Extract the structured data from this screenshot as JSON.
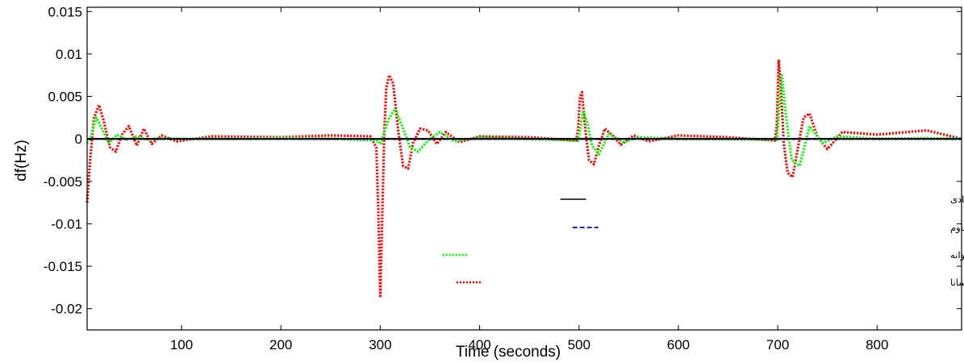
{
  "chart_data": {
    "type": "line",
    "xlabel": "Time (seconds)",
    "ylabel": "df(Hz)",
    "xlim": [
      5,
      885
    ],
    "ylim": [
      -0.0225,
      0.0155
    ],
    "xticks": [
      100,
      200,
      300,
      400,
      500,
      600,
      700,
      800
    ],
    "xtick_labels": [
      "100",
      "200",
      "300",
      "400",
      "500",
      "600",
      "700",
      "800"
    ],
    "yticks": [
      0.015,
      0.01,
      0.005,
      0,
      -0.005,
      -0.01,
      -0.015,
      -0.02
    ],
    "ytick_labels": [
      "0.015",
      "0.01",
      "0.005",
      "0",
      "-0.005",
      "-0.01",
      "-0.015",
      "-0.02"
    ],
    "grid": false,
    "legend_position": "right",
    "series": [
      {
        "name": "کنترل هماهنگ سیستم کنترل فرکانس-بار و ذخیره ساز ابررسانا مبتنی بر کنترل کننده پیشنهادی",
        "color": "#000000",
        "style": "solid",
        "x": [
          5,
          885
        ],
        "y": [
          0,
          0
        ]
      },
      {
        "name": "کنترل هماهنگ سیستم کنترل فرکانس-بار و ذخیره ساز ابررسانا مبتنی بر کنترل کننده مقاوم",
        "color": "#0000ff",
        "style": "dashed",
        "x": [
          5,
          885
        ],
        "y": [
          0,
          0
        ]
      },
      {
        "name": "کنترل هماهنگ سیستم کنترل فرکانس-بار و ذخیره ساز ابررسانا مبتنی بر کنترل کننده PID بهینه شده با الگوریتم ازدحام پروانه",
        "color": "#00ff00",
        "style": "dotted",
        "x": [
          5,
          9,
          14,
          20,
          27,
          35,
          45,
          55,
          65,
          80,
          100,
          150,
          200,
          260,
          298,
          299.5,
          301,
          304,
          309,
          315,
          322,
          330,
          338,
          348,
          360,
          375,
          400,
          450,
          499,
          501,
          504,
          508,
          513,
          520,
          530,
          545,
          560,
          600,
          699,
          701,
          704,
          708,
          714,
          722,
          732,
          745,
          760,
          800,
          850,
          885
        ],
        "y": [
          -0.0005,
          0.0003,
          0.0025,
          0.0012,
          -0.0005,
          0.0005,
          -0.0001,
          0.0003,
          -0.0001,
          0.0001,
          0,
          0,
          0.0001,
          0,
          -0.0002,
          -0.0006,
          -0.0005,
          0.0008,
          0.0025,
          0.0035,
          0.0015,
          -0.001,
          -0.0015,
          -0.0002,
          0.0008,
          -0.0003,
          0.0002,
          0,
          -0.0002,
          0.001,
          0.0033,
          0.002,
          -0.0008,
          -0.0018,
          0.0006,
          -0.0004,
          0.0002,
          0,
          -0.0001,
          0.0027,
          0.0075,
          0.003,
          -0.0025,
          -0.0032,
          0.0015,
          -0.0005,
          0.0003,
          0,
          0.0001,
          0
        ]
      },
      {
        "name": "کنترل فرکانس-بار با استفاده از کنترل کننده PID بهینه شده با الگوریتم ازدحام پروانه یا در نظر گرفتن ذخیره ساز ابررسانا",
        "color": "#ff0000",
        "style": "dotted",
        "x": [
          5,
          8,
          12,
          17,
          22,
          28,
          34,
          40,
          47,
          55,
          62,
          70,
          80,
          95,
          130,
          200,
          250,
          290,
          296,
          298,
          300,
          302,
          304,
          306,
          309,
          313,
          318,
          323,
          328,
          333,
          340,
          348,
          357,
          366,
          380,
          400,
          450,
          497,
          499,
          501,
          503,
          506,
          510,
          515,
          520,
          526,
          533,
          542,
          555,
          570,
          600,
          650,
          697,
          699,
          701,
          703,
          706,
          710,
          715,
          720,
          726,
          732,
          740,
          750,
          765,
          800,
          850,
          885
        ],
        "y": [
          -0.0075,
          -0.0025,
          0.0025,
          0.004,
          0.002,
          -0.001,
          -0.0015,
          0.0005,
          0.0015,
          -0.0008,
          0.0012,
          -0.0006,
          0.0004,
          -0.0003,
          0.0003,
          0.0002,
          0.0004,
          0.0003,
          -0.001,
          -0.008,
          -0.0185,
          -0.009,
          0.0005,
          0.006,
          0.0075,
          0.0065,
          0.001,
          -0.0032,
          -0.0035,
          -0.0005,
          0.0012,
          0.001,
          -0.0006,
          0.0008,
          -0.0004,
          0.0003,
          0.0002,
          -0.0002,
          0.001,
          0.005,
          0.0055,
          0.0015,
          -0.0025,
          -0.003,
          -0.0008,
          0.0012,
          0.0005,
          -0.0007,
          0.0004,
          -0.0003,
          0.0004,
          0.0002,
          -0.0002,
          0.0015,
          0.0092,
          0.0065,
          -0.0005,
          -0.004,
          -0.0045,
          -0.0012,
          0.0025,
          0.003,
          0.0002,
          -0.0012,
          0.0008,
          0.0005,
          0.001,
          0
        ]
      }
    ]
  }
}
